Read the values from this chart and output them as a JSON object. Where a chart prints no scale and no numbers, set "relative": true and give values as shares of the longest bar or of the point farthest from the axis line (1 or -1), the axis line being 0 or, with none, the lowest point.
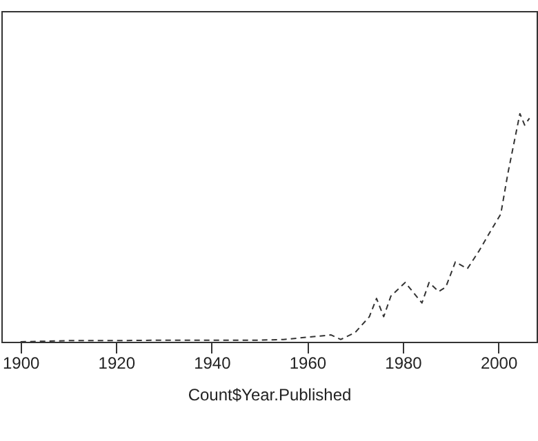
{
  "chart_data": {
    "type": "line",
    "relative": true,
    "xlabel": "Count$Year.Published",
    "xlim": [
      1896,
      2008
    ],
    "xticks": [
      1900,
      1920,
      1940,
      1960,
      1980,
      2000
    ],
    "x": [
      1900,
      1910,
      1920,
      1930,
      1940,
      1950,
      1955,
      1960,
      1965,
      1967,
      1970,
      1973,
      1974.5,
      1976,
      1977.5,
      1980.5,
      1984,
      1985.5,
      1987.5,
      1989,
      1991,
      1993.5,
      1996,
      1998.5,
      2000.5,
      2002,
      2004.5,
      2005.5,
      2006.5
    ],
    "series": [
      {
        "color": "#333333",
        "values": [
          0,
          0.005,
          0.005,
          0.007,
          0.007,
          0.007,
          0.01,
          0.02,
          0.03,
          0.01,
          0.04,
          0.11,
          0.19,
          0.11,
          0.2,
          0.26,
          0.17,
          0.26,
          0.22,
          0.24,
          0.35,
          0.32,
          0.4,
          0.49,
          0.56,
          0.74,
          1,
          0.95,
          0.98
        ]
      }
    ],
    "line_style": "dashed",
    "marker": "none",
    "grid": false
  }
}
